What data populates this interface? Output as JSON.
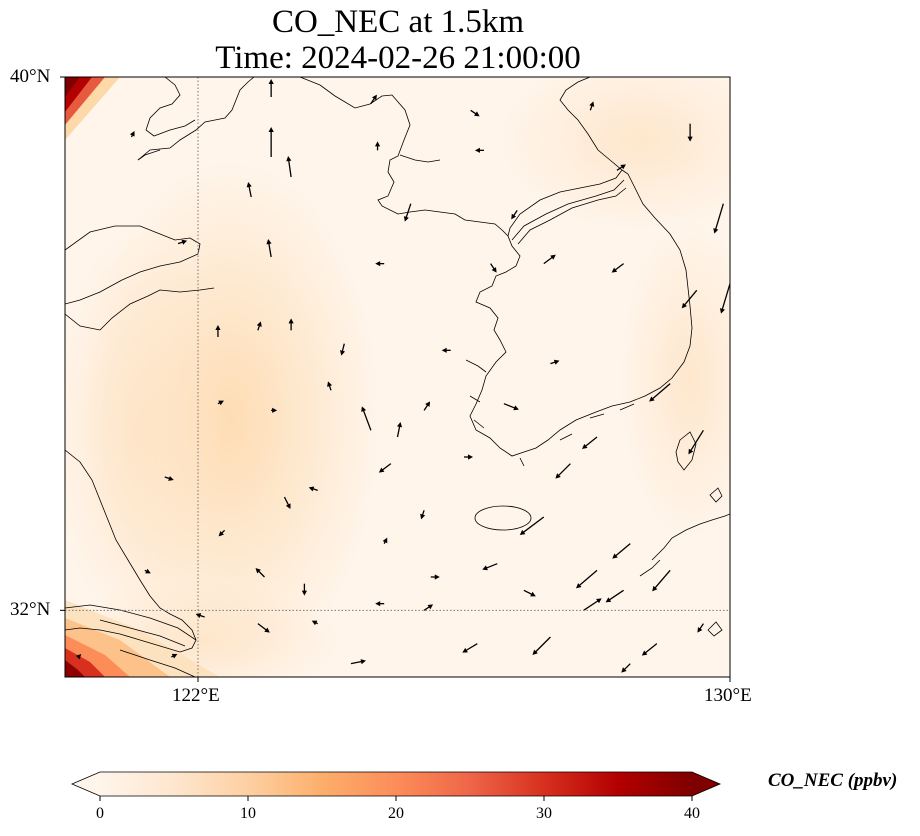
{
  "title": {
    "line1": "CO_NEC at 1.5km",
    "line2": "Time: 2024-02-26 21:00:00"
  },
  "map": {
    "lon_range": [
      120,
      130
    ],
    "lat_range": [
      31,
      40
    ],
    "gridlines": {
      "lons": [
        122
      ],
      "lats": [
        32
      ],
      "style": "dotted"
    },
    "lon_ticks": [
      {
        "value": 122,
        "label": "122°E"
      },
      {
        "value": 130,
        "label": "130°E"
      }
    ],
    "lat_ticks": [
      {
        "value": 40,
        "label": "40°N"
      },
      {
        "value": 32,
        "label": "32°N"
      }
    ],
    "coastline_color": "#000000",
    "field_colors": {
      "low": "#fff5eb",
      "mid": "#fdd8a9",
      "high": "#7f0000"
    },
    "wind_vectors": [
      [
        120.4,
        40.0,
        0.6,
        0.4
      ],
      [
        121.7,
        40.0,
        0.4,
        0.2
      ],
      [
        123.1,
        39.7,
        0.0,
        0.6
      ],
      [
        124.6,
        39.6,
        0.2,
        0.3
      ],
      [
        126.1,
        39.5,
        0.3,
        -0.2
      ],
      [
        127.9,
        39.5,
        0.1,
        0.3
      ],
      [
        129.4,
        39.3,
        0.0,
        -0.6
      ],
      [
        121.0,
        39.1,
        0.1,
        0.2
      ],
      [
        123.1,
        38.8,
        0.0,
        1.0
      ],
      [
        124.7,
        38.9,
        0.0,
        0.3
      ],
      [
        126.3,
        38.9,
        -0.3,
        0.0
      ],
      [
        128.3,
        38.6,
        0.3,
        0.2
      ],
      [
        123.4,
        38.5,
        -0.1,
        0.7
      ],
      [
        122.8,
        38.2,
        -0.1,
        0.5
      ],
      [
        125.2,
        38.1,
        -0.2,
        -0.6
      ],
      [
        126.8,
        38.0,
        -0.2,
        -0.3
      ],
      [
        129.9,
        38.1,
        -0.3,
        -1.0
      ],
      [
        121.7,
        37.5,
        0.3,
        0.1
      ],
      [
        123.1,
        37.3,
        -0.1,
        0.6
      ],
      [
        124.8,
        37.2,
        -0.3,
        0.0
      ],
      [
        126.4,
        37.2,
        0.2,
        -0.3
      ],
      [
        127.2,
        37.2,
        0.4,
        0.3
      ],
      [
        128.4,
        37.2,
        -0.4,
        -0.3
      ],
      [
        129.5,
        36.8,
        -0.5,
        -0.6
      ],
      [
        130.0,
        36.9,
        -0.3,
        -1.0
      ],
      [
        122.3,
        36.1,
        0.0,
        0.4
      ],
      [
        122.9,
        36.2,
        0.1,
        0.3
      ],
      [
        123.4,
        36.2,
        0.0,
        0.4
      ],
      [
        124.2,
        36.0,
        -0.1,
        -0.4
      ],
      [
        125.8,
        35.9,
        -0.3,
        0.0
      ],
      [
        127.3,
        35.7,
        0.3,
        0.1
      ],
      [
        129.1,
        35.4,
        -0.7,
        -0.6
      ],
      [
        122.3,
        35.1,
        0.2,
        0.1
      ],
      [
        123.1,
        35.0,
        0.2,
        0.0
      ],
      [
        124.0,
        35.3,
        -0.1,
        0.3
      ],
      [
        125.4,
        35.0,
        0.2,
        0.3
      ],
      [
        126.6,
        35.1,
        0.5,
        -0.2
      ],
      [
        128.0,
        34.6,
        -0.5,
        -0.4
      ],
      [
        129.6,
        34.7,
        -0.5,
        -0.8
      ],
      [
        124.6,
        34.7,
        -0.3,
        0.8
      ],
      [
        125.0,
        34.6,
        0.1,
        0.5
      ],
      [
        124.9,
        34.2,
        -0.4,
        -0.3
      ],
      [
        126.0,
        34.3,
        0.3,
        0.0
      ],
      [
        127.6,
        34.2,
        -0.5,
        -0.5
      ],
      [
        121.5,
        34.0,
        0.3,
        -0.1
      ],
      [
        123.3,
        33.7,
        0.2,
        -0.4
      ],
      [
        123.8,
        33.8,
        -0.3,
        0.1
      ],
      [
        125.4,
        33.5,
        -0.1,
        -0.3
      ],
      [
        127.2,
        33.4,
        -0.8,
        -0.6
      ],
      [
        128.5,
        33.0,
        -0.6,
        -0.5
      ],
      [
        122.4,
        33.2,
        -0.2,
        -0.2
      ],
      [
        124.8,
        33.0,
        0.1,
        0.2
      ],
      [
        126.5,
        32.7,
        -0.5,
        -0.2
      ],
      [
        128.0,
        32.6,
        -0.7,
        -0.6
      ],
      [
        129.1,
        32.6,
        -0.6,
        -0.7
      ],
      [
        121.2,
        32.6,
        0.2,
        -0.1
      ],
      [
        123.0,
        32.5,
        -0.3,
        0.3
      ],
      [
        123.6,
        32.4,
        0.0,
        -0.4
      ],
      [
        125.5,
        32.5,
        0.3,
        0.0
      ],
      [
        126.9,
        32.3,
        0.4,
        -0.2
      ],
      [
        128.4,
        32.3,
        -0.6,
        -0.4
      ],
      [
        127.8,
        32.0,
        0.6,
        0.4
      ],
      [
        124.8,
        32.1,
        -0.3,
        0.0
      ],
      [
        125.4,
        32.0,
        0.3,
        0.2
      ],
      [
        122.1,
        31.9,
        -0.3,
        0.1
      ],
      [
        122.9,
        31.8,
        0.4,
        -0.3
      ],
      [
        123.8,
        31.8,
        -0.2,
        0.1
      ],
      [
        126.2,
        31.5,
        -0.5,
        -0.3
      ],
      [
        127.3,
        31.6,
        -0.6,
        -0.6
      ],
      [
        128.9,
        31.5,
        -0.5,
        -0.4
      ],
      [
        129.6,
        31.8,
        -0.2,
        -0.3
      ],
      [
        121.6,
        31.3,
        0.2,
        0.1
      ],
      [
        124.3,
        31.2,
        0.5,
        0.1
      ],
      [
        128.5,
        31.2,
        -0.3,
        -0.3
      ],
      [
        120.2,
        31.3,
        0.1,
        0.1
      ]
    ]
  },
  "colorbar": {
    "title": "CO_NEC (ppbv)",
    "min": 0,
    "max": 40,
    "ticks": [
      {
        "value": 0,
        "label": "0"
      },
      {
        "value": 10,
        "label": "10"
      },
      {
        "value": 20,
        "label": "20"
      },
      {
        "value": 30,
        "label": "30"
      },
      {
        "value": 40,
        "label": "40"
      }
    ],
    "stops": [
      {
        "offset": 0,
        "color": "#fff5eb"
      },
      {
        "offset": 0.125,
        "color": "#fee6ce"
      },
      {
        "offset": 0.25,
        "color": "#fdd0a2"
      },
      {
        "offset": 0.375,
        "color": "#fdae6b"
      },
      {
        "offset": 0.5,
        "color": "#fc8d59"
      },
      {
        "offset": 0.625,
        "color": "#ef6548"
      },
      {
        "offset": 0.75,
        "color": "#d7301f"
      },
      {
        "offset": 0.875,
        "color": "#b30000"
      },
      {
        "offset": 1,
        "color": "#7f0000"
      }
    ]
  }
}
